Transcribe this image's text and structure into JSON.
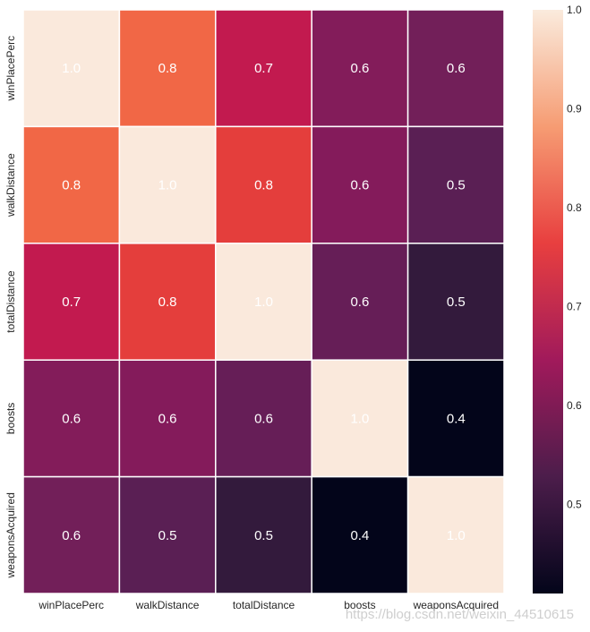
{
  "chart_data": {
    "type": "heatmap",
    "rows": [
      "winPlacePerc",
      "walkDistance",
      "totalDistance",
      "boosts",
      "weaponsAcquired"
    ],
    "columns": [
      "winPlacePerc",
      "walkDistance",
      "totalDistance",
      "boosts",
      "weaponsAcquired"
    ],
    "values": [
      [
        1.0,
        0.8,
        0.7,
        0.6,
        0.6
      ],
      [
        0.8,
        1.0,
        0.8,
        0.6,
        0.5
      ],
      [
        0.7,
        0.8,
        1.0,
        0.6,
        0.5
      ],
      [
        0.6,
        0.6,
        0.6,
        1.0,
        0.4
      ],
      [
        0.6,
        0.5,
        0.5,
        0.4,
        1.0
      ]
    ],
    "annotations": [
      [
        "1.0",
        "0.8",
        "0.7",
        "0.6",
        "0.6"
      ],
      [
        "0.8",
        "1.0",
        "0.8",
        "0.6",
        "0.5"
      ],
      [
        "0.7",
        "0.8",
        "1.0",
        "0.6",
        "0.5"
      ],
      [
        "0.6",
        "0.6",
        "0.6",
        "1.0",
        "0.4"
      ],
      [
        "0.6",
        "0.5",
        "0.5",
        "0.4",
        "1.0"
      ]
    ],
    "cell_colors": [
      [
        "#fae9dc",
        "#f16746",
        "#c21a4f",
        "#831c5a",
        "#721f59"
      ],
      [
        "#f16746",
        "#fae9dc",
        "#e43e3c",
        "#841b5b",
        "#5a1f54"
      ],
      [
        "#c21a4f",
        "#e43e3c",
        "#fae9dc",
        "#661e57",
        "#331a3c"
      ],
      [
        "#831c5a",
        "#841b5b",
        "#661e57",
        "#fae9dc",
        "#03051a"
      ],
      [
        "#721f59",
        "#5a1f54",
        "#331a3c",
        "#03051a",
        "#fae9dc"
      ]
    ],
    "colorbar": {
      "vmin": 0.41,
      "vmax": 1.0,
      "ticks": [
        0.5,
        0.6,
        0.7,
        0.8,
        0.9,
        1.0
      ],
      "tick_labels": [
        "0.5",
        "0.6",
        "0.7",
        "0.8",
        "0.9",
        "1.0"
      ],
      "colormap": "rocket",
      "stops": [
        "#03051a",
        "#4c1d4b",
        "#a11a5b",
        "#e83f3f",
        "#f69c73",
        "#faebdd"
      ]
    },
    "title": "",
    "xlabel": "",
    "ylabel": ""
  },
  "watermark": "https://blog.csdn.net/weixin_44510615"
}
